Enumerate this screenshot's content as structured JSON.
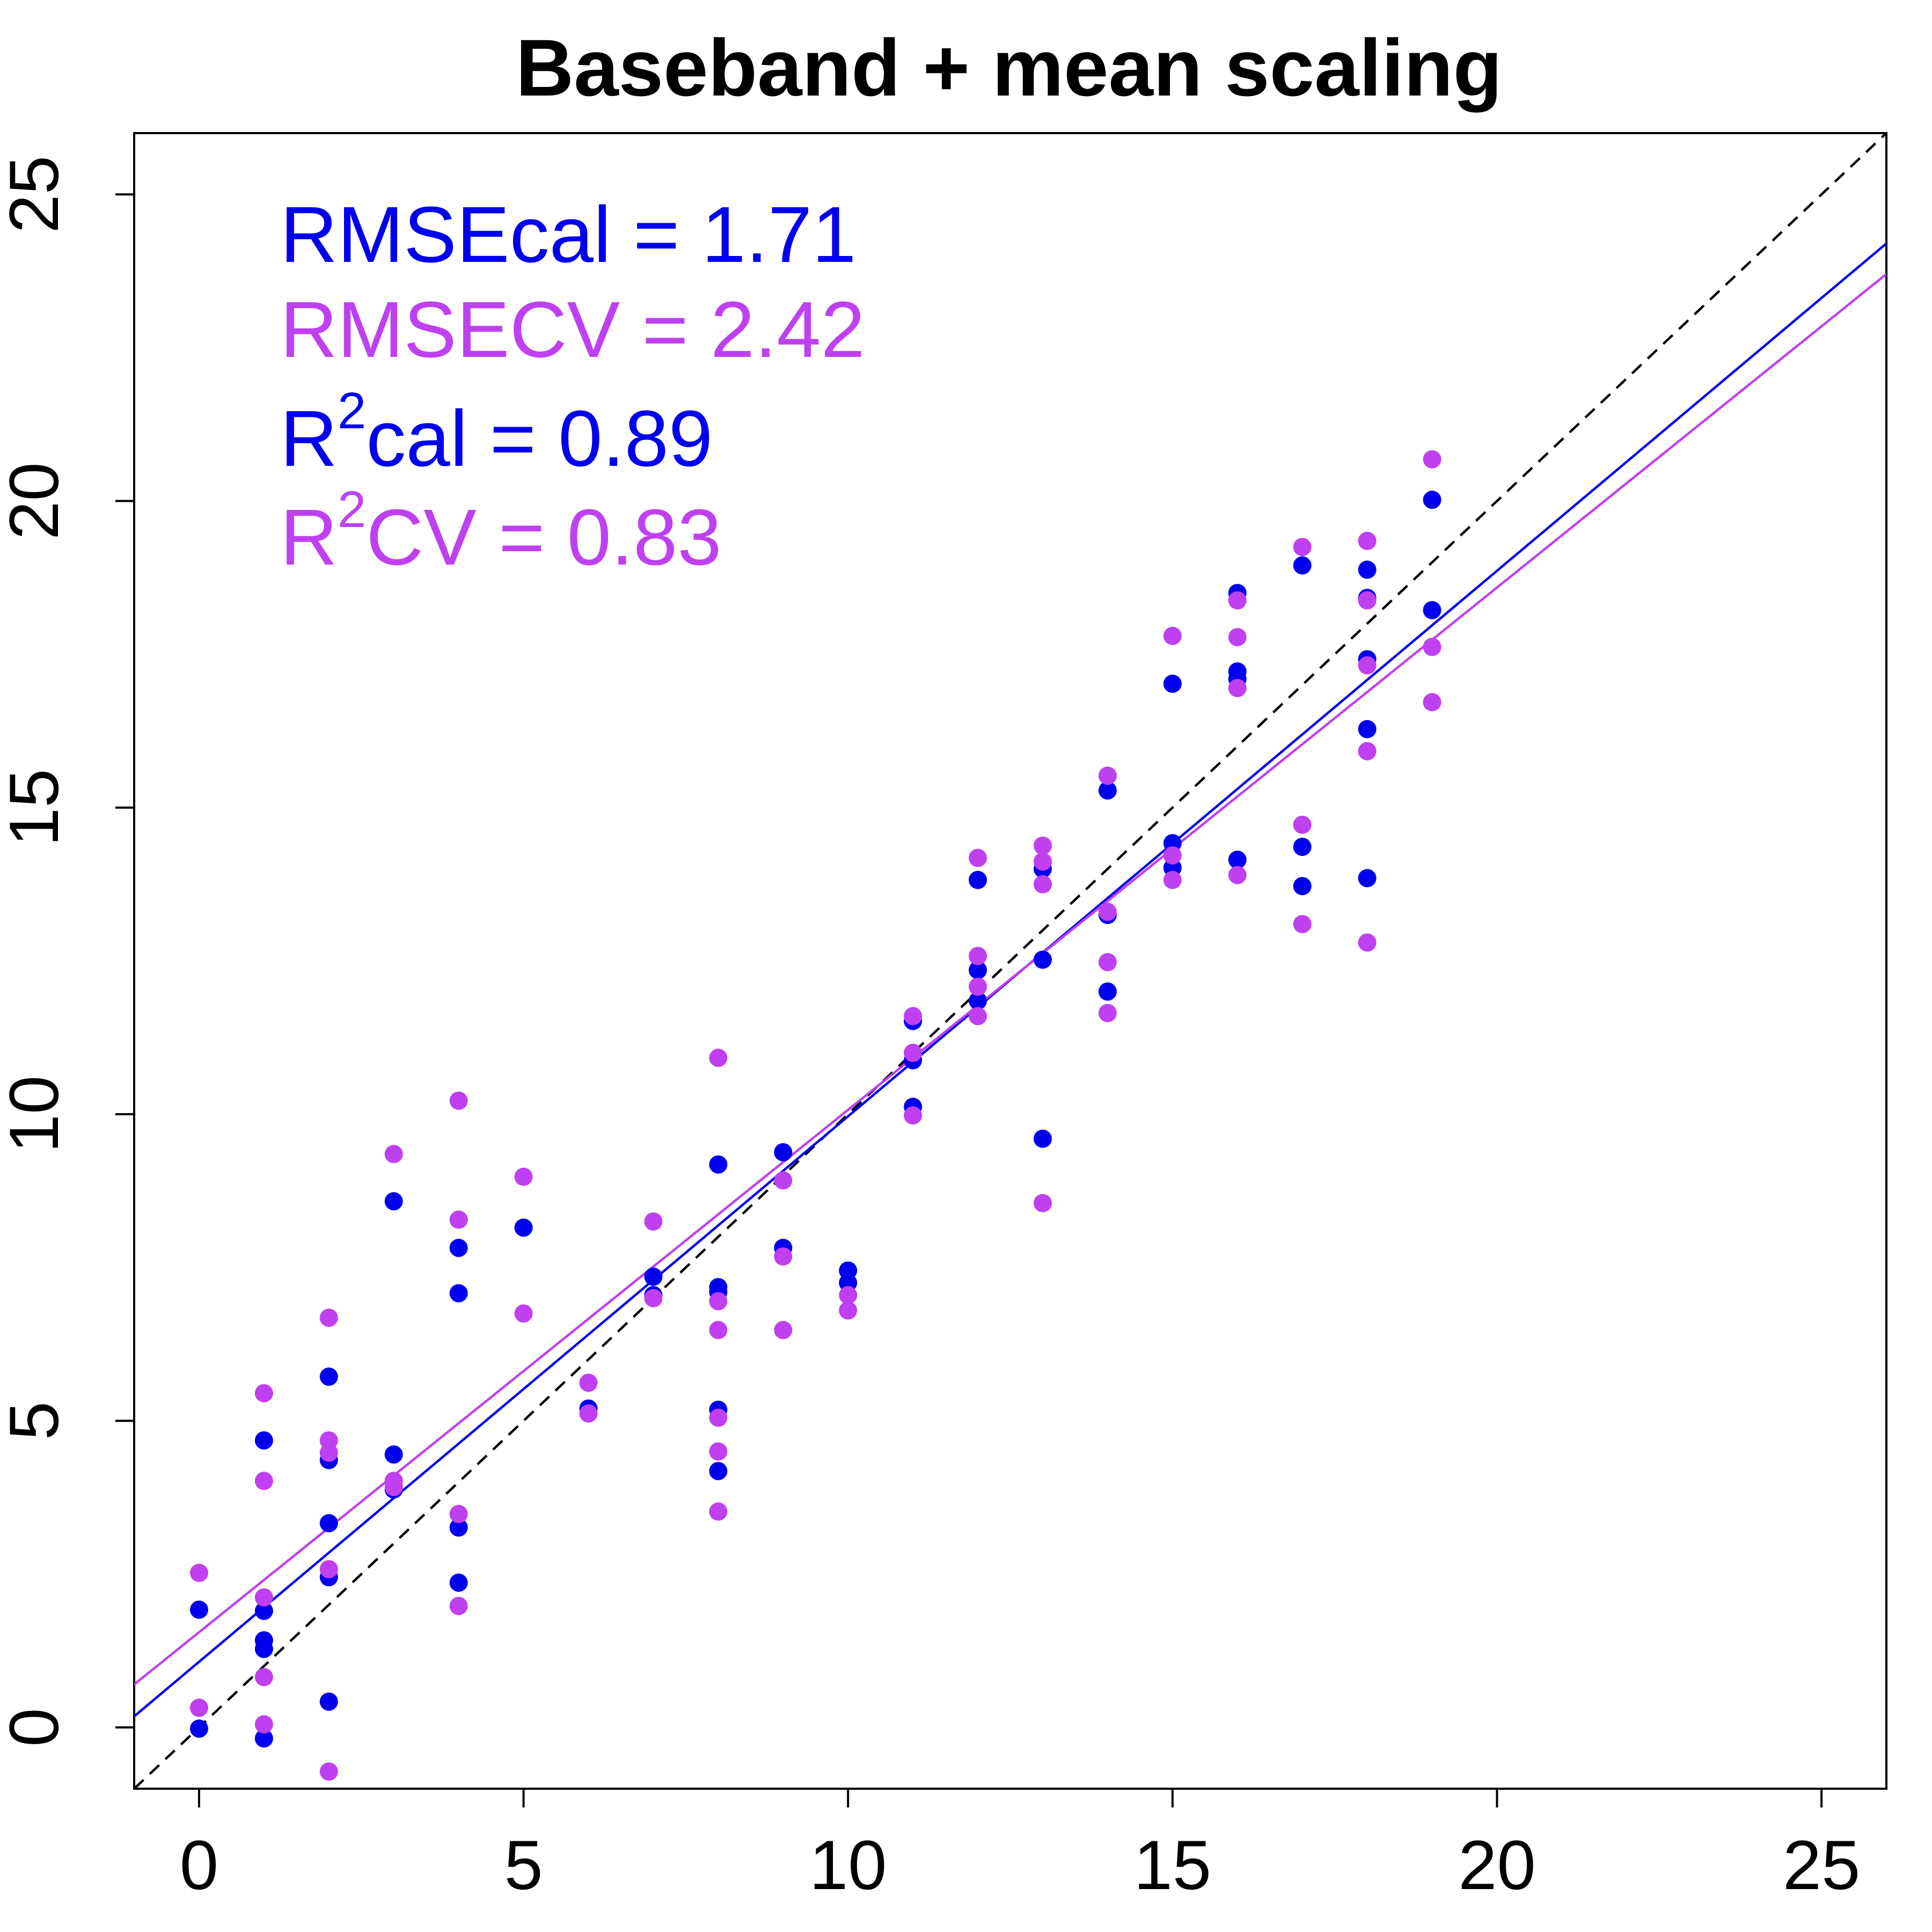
{
  "chart_data": {
    "type": "scatter",
    "title": "Baseband + mean scaling",
    "xlabel": "",
    "ylabel": "",
    "xlim": [
      -1,
      26
    ],
    "ylim": [
      -1,
      26
    ],
    "xticks": [
      "0",
      "5",
      "10",
      "15",
      "20",
      "25"
    ],
    "yticks": [
      "0",
      "5",
      "10",
      "15",
      "20",
      "25"
    ],
    "grid": false,
    "colors": {
      "cal": "#0000EE",
      "cv": "#BF40F0",
      "identity": "#000000"
    },
    "annotations": {
      "rmse_cal": "RMSEcal = 1.71",
      "rmse_cv": "RMSECV = 2.42",
      "r2_cal_a": "R",
      "r2_cal_sup": "2",
      "r2_cal_b": "cal = 0.89",
      "r2_cv_a": "R",
      "r2_cv_sup": "2",
      "r2_cv_b": "CV = 0.83"
    },
    "lines": [
      {
        "kind": "identity",
        "style": "dashed",
        "color": "#000000",
        "from": [
          -1,
          -1
        ],
        "to": [
          26,
          26
        ]
      },
      {
        "kind": "fit-cal",
        "style": "solid",
        "color": "#0000EE",
        "from": [
          -1,
          0.18
        ],
        "to": [
          26,
          24.2
        ]
      },
      {
        "kind": "fit-cv",
        "style": "solid",
        "color": "#BF40F0",
        "from": [
          -1,
          0.7
        ],
        "to": [
          26,
          23.7
        ]
      }
    ],
    "series": [
      {
        "color": "#0000EE",
        "points": [
          [
            0,
            1.92
          ],
          [
            0,
            -0.02
          ],
          [
            1,
            4.68
          ],
          [
            1,
            1.9
          ],
          [
            1,
            1.42
          ],
          [
            1,
            1.28
          ],
          [
            1,
            -0.18
          ],
          [
            2,
            5.72
          ],
          [
            2,
            4.36
          ],
          [
            2,
            3.33
          ],
          [
            2,
            2.45
          ],
          [
            2,
            0.42
          ],
          [
            3,
            8.58
          ],
          [
            3,
            4.45
          ],
          [
            3,
            3.88
          ],
          [
            4,
            7.82
          ],
          [
            4,
            7.08
          ],
          [
            4,
            3.26
          ],
          [
            4,
            2.36
          ],
          [
            5,
            8.15
          ],
          [
            6,
            5.2
          ],
          [
            7,
            7.35
          ],
          [
            7,
            7.05
          ],
          [
            8,
            9.18
          ],
          [
            8,
            7.18
          ],
          [
            8,
            7.1
          ],
          [
            8,
            5.18
          ],
          [
            8,
            4.18
          ],
          [
            9,
            9.38
          ],
          [
            9,
            7.82
          ],
          [
            10,
            7.45
          ],
          [
            10,
            7.25
          ],
          [
            11,
            11.52
          ],
          [
            11,
            10.88
          ],
          [
            11,
            10.12
          ],
          [
            12,
            13.82
          ],
          [
            12,
            12.35
          ],
          [
            12,
            11.85
          ],
          [
            13,
            14.0
          ],
          [
            13,
            12.52
          ],
          [
            13,
            9.6
          ],
          [
            14,
            15.28
          ],
          [
            14,
            13.25
          ],
          [
            14,
            12.0
          ],
          [
            15,
            17.02
          ],
          [
            15,
            14.42
          ],
          [
            15,
            14.02
          ],
          [
            16,
            18.5
          ],
          [
            16,
            17.22
          ],
          [
            16,
            17.1
          ],
          [
            16,
            14.15
          ],
          [
            17,
            18.95
          ],
          [
            17,
            14.36
          ],
          [
            17,
            13.72
          ],
          [
            18,
            18.88
          ],
          [
            18,
            18.42
          ],
          [
            18,
            17.42
          ],
          [
            18,
            16.28
          ],
          [
            18,
            13.85
          ],
          [
            19,
            20.02
          ],
          [
            19,
            18.22
          ]
        ]
      },
      {
        "color": "#BF40F0",
        "points": [
          [
            0,
            2.52
          ],
          [
            0,
            0.32
          ],
          [
            1,
            5.45
          ],
          [
            1,
            4.02
          ],
          [
            1,
            2.12
          ],
          [
            1,
            0.82
          ],
          [
            1,
            0.05
          ],
          [
            2,
            6.68
          ],
          [
            2,
            4.68
          ],
          [
            2,
            4.48
          ],
          [
            2,
            2.58
          ],
          [
            2,
            -0.72
          ],
          [
            3,
            9.35
          ],
          [
            3,
            4.02
          ],
          [
            3,
            3.92
          ],
          [
            4,
            10.22
          ],
          [
            4,
            8.28
          ],
          [
            4,
            3.48
          ],
          [
            4,
            1.98
          ],
          [
            5,
            8.98
          ],
          [
            5,
            6.75
          ],
          [
            6,
            5.62
          ],
          [
            6,
            5.12
          ],
          [
            7,
            8.25
          ],
          [
            7,
            7.0
          ],
          [
            8,
            10.92
          ],
          [
            8,
            6.95
          ],
          [
            8,
            6.48
          ],
          [
            8,
            5.05
          ],
          [
            8,
            4.5
          ],
          [
            8,
            3.52
          ],
          [
            9,
            8.92
          ],
          [
            9,
            7.68
          ],
          [
            9,
            6.48
          ],
          [
            10,
            7.05
          ],
          [
            10,
            6.8
          ],
          [
            11,
            11.6
          ],
          [
            11,
            11.0
          ],
          [
            11,
            9.98
          ],
          [
            12,
            14.18
          ],
          [
            12,
            12.58
          ],
          [
            12,
            12.08
          ],
          [
            12,
            11.6
          ],
          [
            13,
            14.38
          ],
          [
            13,
            14.12
          ],
          [
            13,
            13.75
          ],
          [
            13,
            8.55
          ],
          [
            14,
            15.52
          ],
          [
            14,
            13.3
          ],
          [
            14,
            12.48
          ],
          [
            14,
            11.65
          ],
          [
            15,
            17.8
          ],
          [
            15,
            14.22
          ],
          [
            15,
            13.82
          ],
          [
            16,
            18.38
          ],
          [
            16,
            17.78
          ],
          [
            16,
            16.95
          ],
          [
            16,
            13.9
          ],
          [
            17,
            19.25
          ],
          [
            17,
            14.72
          ],
          [
            17,
            13.1
          ],
          [
            18,
            19.35
          ],
          [
            18,
            18.38
          ],
          [
            18,
            17.32
          ],
          [
            18,
            15.92
          ],
          [
            18,
            12.8
          ],
          [
            19,
            20.68
          ],
          [
            19,
            17.62
          ],
          [
            19,
            16.72
          ]
        ]
      }
    ]
  }
}
